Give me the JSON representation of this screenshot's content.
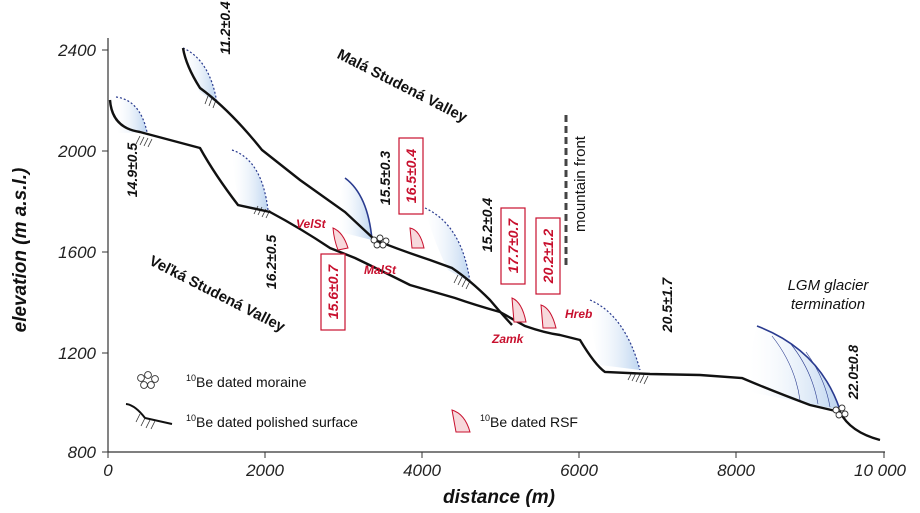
{
  "axes": {
    "y_label": "elevation (m a.s.l.)",
    "x_label": "distance (m)",
    "y_ticks": [
      "2400",
      "2000",
      "1600",
      "1200",
      "800"
    ],
    "x_ticks": [
      "0",
      "2000",
      "4000",
      "6000",
      "8000",
      "10 000"
    ]
  },
  "valleys": {
    "upper": "Malá Studená Valley",
    "lower": "Veľká Studená Valley"
  },
  "ages_black": [
    "11.2±0.4",
    "14.9±0.5",
    "16.2±0.5",
    "15.5±0.3",
    "15.2±0.4",
    "20.5±1.7",
    "22.0±0.8"
  ],
  "ages_red": [
    "16.5±0.4",
    "15.6±0.7",
    "17.7±0.7",
    "20.2±1.2"
  ],
  "sites": [
    "VelSt",
    "MalSt",
    "Zamk",
    "Hreb"
  ],
  "annotations": {
    "mountain_front": "mountain front",
    "lgm_line1": "LGM glacier",
    "lgm_line2": "termination"
  },
  "legend": {
    "isotope": "10",
    "moraine": "Be dated moraine",
    "polished": "Be dated polished surface",
    "rsf": "Be dated RSF"
  },
  "colors": {
    "red": "#c8102e",
    "ice_blue": "#c9dcf2",
    "ice_line": "#2a3b8f"
  }
}
